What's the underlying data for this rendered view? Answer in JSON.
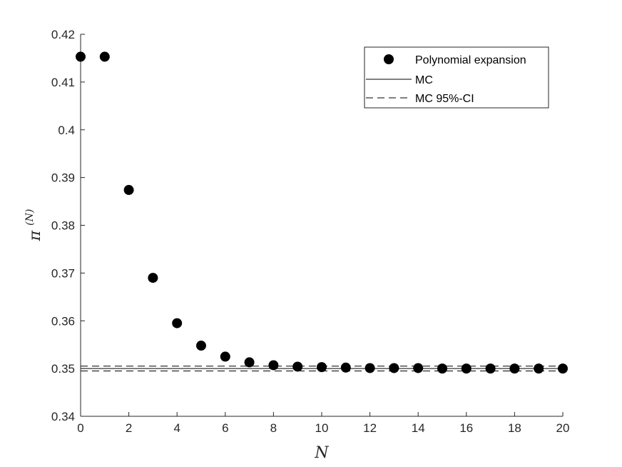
{
  "chart_data": {
    "type": "scatter",
    "xlabel": "N",
    "ylabel": "π",
    "ylabel_superscript": "(N)",
    "xlim": [
      0,
      20
    ],
    "ylim": [
      0.34,
      0.42
    ],
    "xticks": [
      0,
      2,
      4,
      6,
      8,
      10,
      12,
      14,
      16,
      18,
      20
    ],
    "xtick_labels": [
      "0",
      "2",
      "4",
      "6",
      "8",
      "10",
      "12",
      "14",
      "16",
      "18",
      "20"
    ],
    "yticks": [
      0.34,
      0.35,
      0.36,
      0.37,
      0.38,
      0.39,
      0.4,
      0.41,
      0.42
    ],
    "ytick_labels": [
      "0.34",
      "0.35",
      "0.36",
      "0.37",
      "0.38",
      "0.39",
      "0.4",
      "0.41",
      "0.42"
    ],
    "grid": false,
    "legend_position": "top-right",
    "series": [
      {
        "name": "Polynomial expansion",
        "kind": "markers",
        "x": [
          0,
          1,
          2,
          3,
          4,
          5,
          6,
          7,
          8,
          9,
          10,
          11,
          12,
          13,
          14,
          15,
          16,
          17,
          18,
          19,
          20
        ],
        "y": [
          0.4153,
          0.4153,
          0.3874,
          0.369,
          0.3595,
          0.3548,
          0.3525,
          0.3513,
          0.3507,
          0.3504,
          0.3503,
          0.3502,
          0.3501,
          0.3501,
          0.3501,
          0.35,
          0.35,
          0.35,
          0.35,
          0.35,
          0.35
        ]
      },
      {
        "name": "MC",
        "kind": "hline-solid",
        "y": 0.35
      },
      {
        "name": "MC 95%-CI",
        "kind": "hline-dashed",
        "y": [
          0.3495,
          0.3505
        ]
      }
    ],
    "colors": {
      "marker": "#000000",
      "axis": "#262626"
    }
  }
}
